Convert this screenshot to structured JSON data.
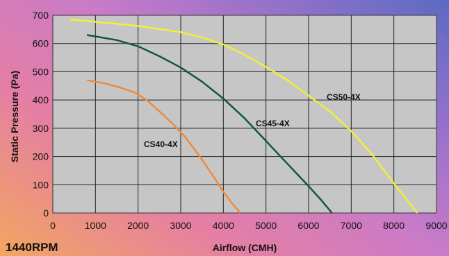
{
  "chart_data": {
    "type": "line",
    "title": "",
    "xlabel": "Airflow (CMH)",
    "ylabel": "Static Pressure (Pa)",
    "corner_label": "1440RPM",
    "xlim": [
      0,
      9000
    ],
    "ylim": [
      0,
      700
    ],
    "x_ticks": [
      0,
      1000,
      2000,
      3000,
      4000,
      5000,
      6000,
      7000,
      8000,
      9000
    ],
    "y_ticks": [
      0,
      100,
      200,
      300,
      400,
      500,
      600,
      700
    ],
    "grid": true,
    "legend": "none",
    "series": [
      {
        "name": "CS40-4X",
        "color": "#f08a3a",
        "x": [
          800,
          1000,
          1300,
          1600,
          1900,
          2200,
          2500,
          2800,
          3100,
          3400,
          3700,
          4000,
          4200,
          4400
        ],
        "y": [
          470,
          465,
          456,
          443,
          428,
          400,
          360,
          318,
          270,
          210,
          145,
          75,
          35,
          0
        ]
      },
      {
        "name": "CS45-4X",
        "color": "#0d5a36",
        "x": [
          800,
          1000,
          1500,
          2000,
          2500,
          3000,
          3500,
          4000,
          4500,
          5000,
          5500,
          6000,
          6300,
          6550
        ],
        "y": [
          630,
          625,
          612,
          590,
          555,
          515,
          465,
          405,
          335,
          255,
          175,
          95,
          45,
          0
        ]
      },
      {
        "name": "CS50-4X",
        "color": "#f2ee3a",
        "x": [
          400,
          1000,
          2000,
          3000,
          3500,
          4000,
          4500,
          5000,
          5500,
          6000,
          6500,
          7000,
          7500,
          8000,
          8550
        ],
        "y": [
          685,
          677,
          662,
          640,
          622,
          597,
          560,
          517,
          470,
          415,
          360,
          290,
          205,
          105,
          0
        ]
      }
    ]
  }
}
